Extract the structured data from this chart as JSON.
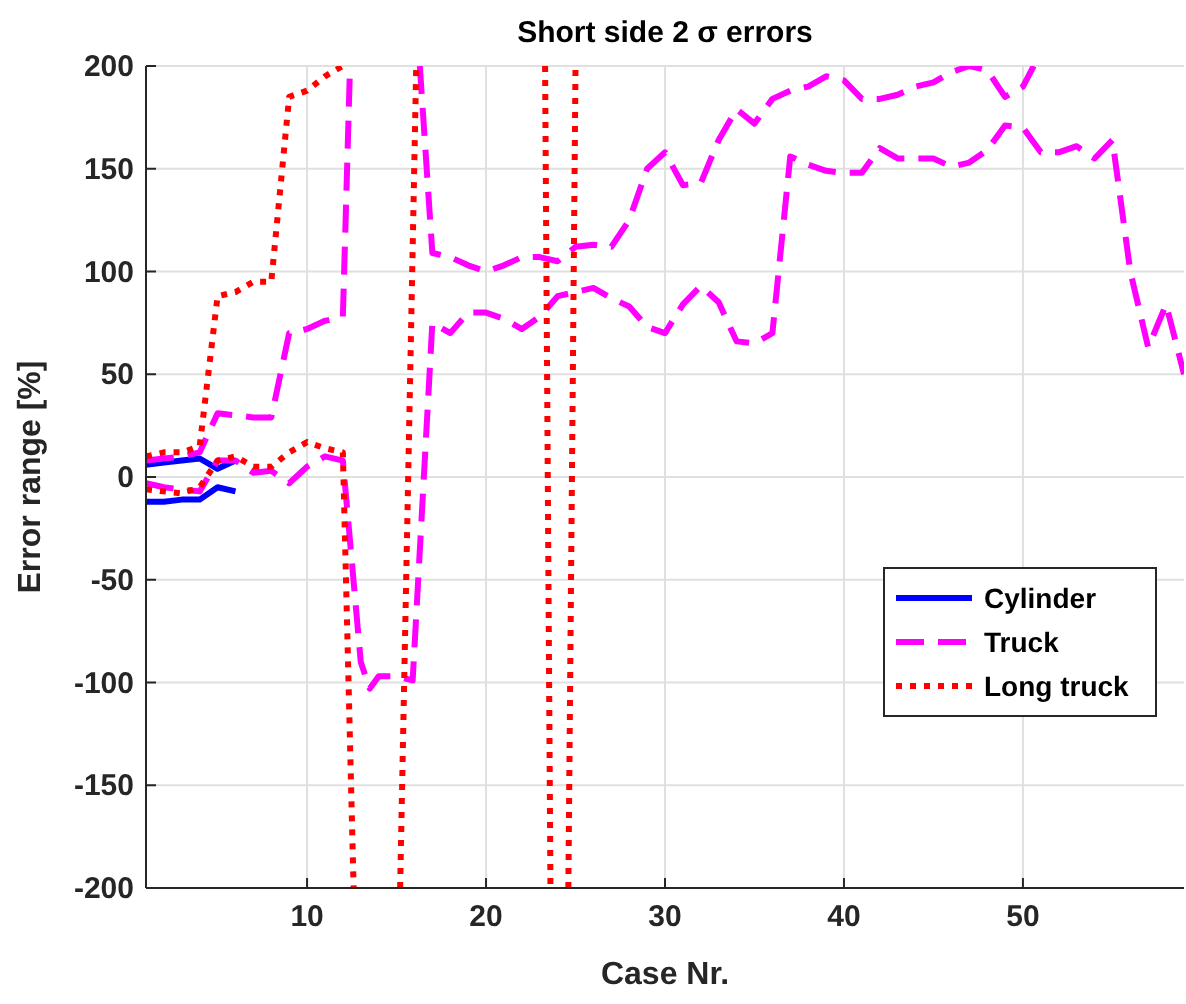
{
  "chart_data": {
    "type": "line",
    "title": "Short side 2 σ errors",
    "xlabel": "Case Nr.",
    "ylabel": "Error range [%]",
    "xlim": [
      1,
      59
    ],
    "ylim": [
      -200,
      200
    ],
    "xticks": [
      10,
      20,
      30,
      40,
      50
    ],
    "yticks": [
      -200,
      -150,
      -100,
      -50,
      0,
      50,
      100,
      150,
      200
    ],
    "grid": true,
    "legend": "bottom right",
    "series": [
      {
        "name": "Cylinder",
        "color": "#0000ff",
        "line_style": "solid",
        "x": [
          1,
          2,
          3,
          4,
          5,
          6
        ],
        "values": [
          6,
          7,
          8,
          9,
          4,
          8
        ]
      },
      {
        "color": "#0000ff",
        "line_style": "solid",
        "x": [
          1,
          2,
          3,
          4,
          5,
          6
        ],
        "values": [
          -12,
          -12,
          -11,
          -11,
          -5,
          -7
        ]
      },
      {
        "name": "Truck",
        "color": "#ff00ff",
        "line_style": "dashed",
        "x": [
          1,
          2,
          3,
          4,
          5,
          6,
          7,
          8,
          9,
          10,
          11,
          12,
          12.4,
          14,
          16.3,
          17,
          18,
          19,
          20,
          21,
          22,
          23,
          24,
          25,
          26,
          27,
          28,
          29,
          30,
          31,
          32,
          33,
          34,
          35,
          36,
          37,
          38,
          39,
          40,
          41,
          42,
          43,
          44,
          45,
          46,
          47,
          48,
          49,
          50,
          50.6
        ],
        "values": [
          8,
          9,
          10,
          12,
          31,
          30,
          29,
          29,
          70,
          72,
          76,
          78,
          200,
          null,
          200,
          109,
          107,
          103,
          100,
          103,
          107,
          107,
          105,
          112,
          113,
          112,
          125,
          150,
          158,
          142,
          143,
          164,
          179,
          172,
          184,
          188,
          190,
          195,
          193,
          184,
          184,
          186,
          190,
          192,
          197,
          200,
          198,
          185,
          190,
          200
        ]
      },
      {
        "color": "#ff00ff",
        "line_style": "dashed",
        "x": [
          1,
          2,
          3,
          4,
          5,
          6,
          7,
          8,
          9,
          10,
          11,
          12,
          13,
          13.5,
          14,
          15,
          15.9,
          17,
          18,
          19,
          20,
          21,
          22,
          23,
          24,
          25,
          26,
          27,
          28,
          29,
          30,
          31,
          32,
          33,
          34,
          35,
          36,
          37,
          38,
          39,
          40,
          41,
          42,
          43,
          44,
          45,
          46,
          47,
          48,
          49,
          50,
          51,
          52,
          53,
          54,
          55,
          56,
          57,
          58,
          59
        ],
        "values": [
          -3,
          -5,
          -6,
          -7,
          8,
          8,
          2,
          3,
          -3,
          5,
          10,
          8,
          -90,
          -103,
          -97,
          -97,
          -99,
          75,
          70,
          80,
          80,
          77,
          72,
          78,
          88,
          90,
          92,
          87,
          83,
          73,
          70,
          84,
          93,
          85,
          66,
          65,
          70,
          156,
          152,
          149,
          148,
          148,
          160,
          155,
          155,
          155,
          151,
          153,
          159,
          171,
          170,
          158,
          158,
          161,
          155,
          164,
          100,
          63,
          84,
          50
        ]
      },
      {
        "name": "Long truck",
        "color": "#ff0000",
        "line_style": "dotted",
        "x": [
          1,
          2,
          3,
          4,
          5,
          6,
          7,
          8,
          9,
          10,
          11,
          12
        ],
        "values": [
          10,
          12,
          12,
          15,
          88,
          90,
          95,
          95,
          185,
          188,
          195,
          200
        ]
      },
      {
        "color": "#ff0000",
        "line_style": "dotted",
        "x": [
          1,
          2,
          3,
          4,
          5,
          6,
          7,
          8,
          9,
          10,
          11,
          12,
          12.6,
          14,
          15.2,
          16.1,
          20,
          23.3,
          23.6,
          24,
          24.6,
          25
        ],
        "values": [
          -6,
          -7,
          -8,
          -5,
          8,
          10,
          5,
          5,
          12,
          17,
          14,
          12,
          -200,
          null,
          -200,
          200,
          null,
          200,
          -200,
          null,
          -200,
          200
        ]
      }
    ]
  }
}
